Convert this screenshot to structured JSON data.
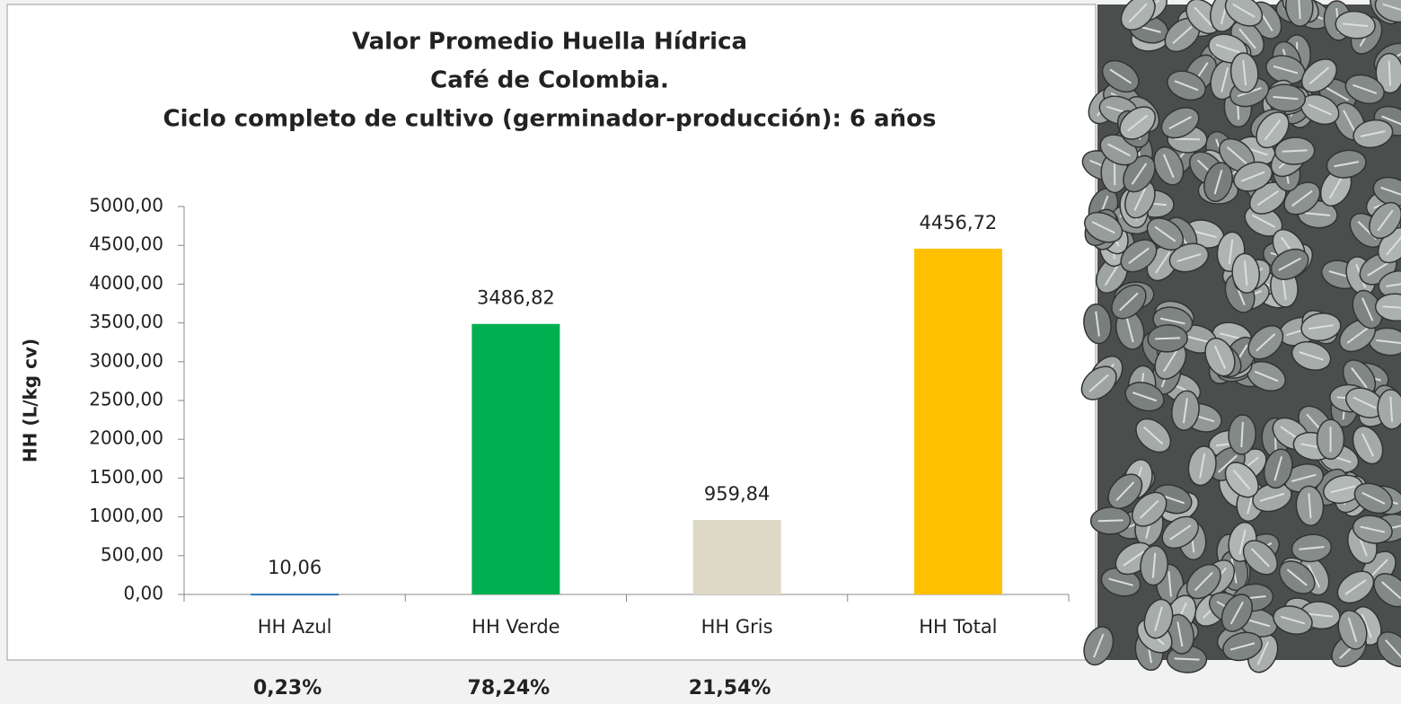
{
  "chart_data": {
    "type": "bar",
    "title": [
      "Valor Promedio Huella Hídrica",
      "Café de Colombia.",
      "Ciclo completo de cultivo (germinador-producción):  6 años"
    ],
    "y_label": "HH (L/kg cv)",
    "categories": [
      "HH Azul",
      "HH Verde",
      "HH Gris",
      "HH Total"
    ],
    "values": [
      10.06,
      3486.82,
      959.84,
      4456.72
    ],
    "value_labels": [
      "10,06",
      "3486,82",
      "959,84",
      "4456,72"
    ],
    "colors": [
      "#2e75b6",
      "#00b050",
      "#ddd9c4",
      "#ffc000"
    ],
    "ylim": [
      0,
      5000
    ],
    "yticks": [
      {
        "value": 0,
        "label": "0,00"
      },
      {
        "value": 500,
        "label": "500,00"
      },
      {
        "value": 1000,
        "label": "1000,00"
      },
      {
        "value": 1500,
        "label": "1500,00"
      },
      {
        "value": 2000,
        "label": "2000,00"
      },
      {
        "value": 2500,
        "label": "2500,00"
      },
      {
        "value": 3000,
        "label": "3000,00"
      },
      {
        "value": 3500,
        "label": "3500,00"
      },
      {
        "value": 4000,
        "label": "4000,00"
      },
      {
        "value": 4500,
        "label": "4500,00"
      },
      {
        "value": 5000,
        "label": "5000,00"
      }
    ],
    "annotations": [
      "0,23%",
      "78,24%",
      "21,54%"
    ]
  }
}
